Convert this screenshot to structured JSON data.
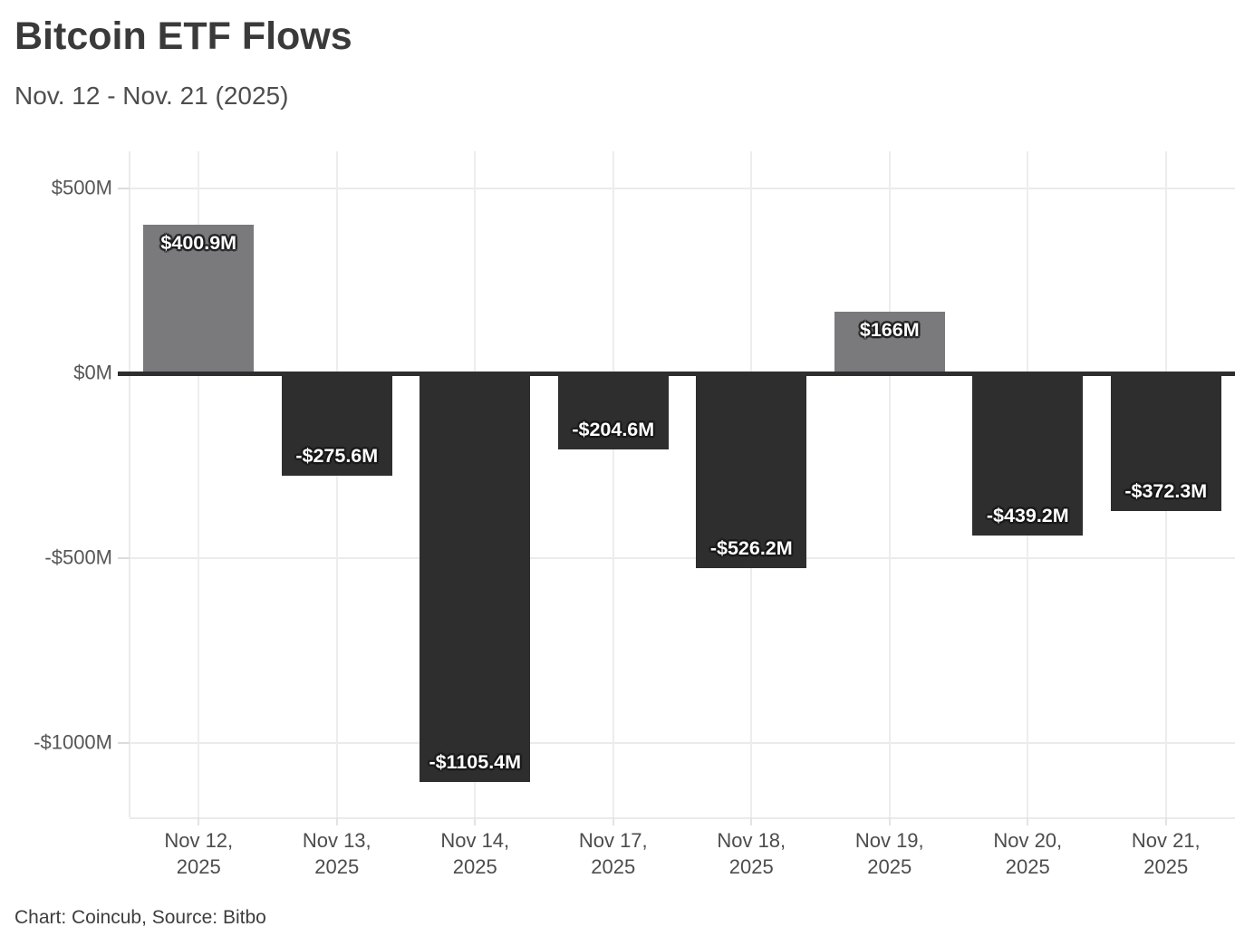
{
  "header": {
    "title": "Bitcoin ETF Flows",
    "subtitle": "Nov. 12 - Nov. 21 (2025)"
  },
  "footer": {
    "text": "Chart: Coincub, Source: Bitbo"
  },
  "chart_data": {
    "type": "bar",
    "title": "Bitcoin ETF Flows",
    "subtitle": "Nov. 12 - Nov. 21 (2025)",
    "categories": [
      "Nov 12,\n2025",
      "Nov 13,\n2025",
      "Nov 14,\n2025",
      "Nov 17,\n2025",
      "Nov 18,\n2025",
      "Nov 19,\n2025",
      "Nov 20,\n2025",
      "Nov 21,\n2025"
    ],
    "values": [
      400.9,
      -275.6,
      -1105.4,
      -204.6,
      -526.2,
      166,
      -439.2,
      -372.3
    ],
    "bar_labels": [
      "$400.9M",
      "-$275.6M",
      "-$1105.4M",
      "-$204.6M",
      "-$526.2M",
      "$166M",
      "-$439.2M",
      "-$372.3M"
    ],
    "unit": "$M (millions of US dollars)",
    "xlabel": "",
    "ylabel": "",
    "ylim": [
      -1200,
      600
    ],
    "yticks": [
      {
        "value": 500,
        "label": "$500M"
      },
      {
        "value": 0,
        "label": "$0M"
      },
      {
        "value": -500,
        "label": "-$500M"
      },
      {
        "value": -1000,
        "label": "-$1000M"
      }
    ],
    "grid": true,
    "legend": "none",
    "positive_color": "#7a7a7d",
    "negative_color": "#2e2e2e",
    "zero_line_color": "#2e2e2e"
  }
}
